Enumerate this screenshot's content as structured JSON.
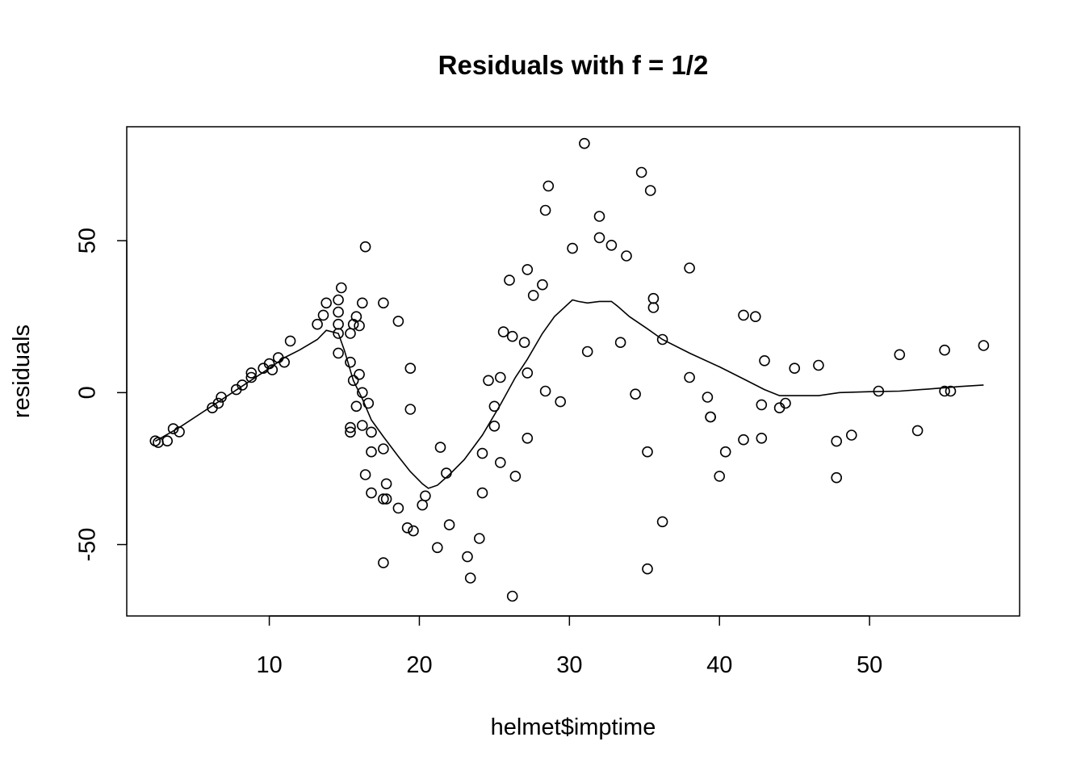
{
  "chart_data": {
    "type": "scatter",
    "title": "Residuals with f = 1/2",
    "xlabel": "helmet$imptime",
    "ylabel": "residuals",
    "xlim": [
      0.5,
      60
    ],
    "ylim": [
      -73.5,
      87.5
    ],
    "xticks": [
      10,
      20,
      30,
      40,
      50
    ],
    "yticks": [
      -50,
      0,
      50
    ],
    "grid": false,
    "legend": "none",
    "point_style": "open-circle",
    "colors": {
      "points": "#000000",
      "line": "#000000",
      "frame": "#000000",
      "background": "#ffffff"
    },
    "points": [
      [
        2.4,
        -15.9
      ],
      [
        2.6,
        -16.4
      ],
      [
        3.2,
        -15.9
      ],
      [
        3.6,
        -11.9
      ],
      [
        4.0,
        -12.9
      ],
      [
        6.2,
        -5.0
      ],
      [
        6.6,
        -3.5
      ],
      [
        6.8,
        -1.5
      ],
      [
        7.8,
        1.0
      ],
      [
        8.2,
        2.5
      ],
      [
        8.8,
        5.0
      ],
      [
        8.8,
        6.5
      ],
      [
        9.6,
        8.0
      ],
      [
        10.0,
        9.5
      ],
      [
        10.2,
        7.5
      ],
      [
        10.6,
        11.5
      ],
      [
        11.0,
        10.0
      ],
      [
        11.4,
        17.0
      ],
      [
        13.2,
        22.5
      ],
      [
        13.6,
        25.5
      ],
      [
        13.8,
        29.5
      ],
      [
        14.6,
        13.0
      ],
      [
        14.6,
        19.5
      ],
      [
        14.6,
        22.5
      ],
      [
        14.6,
        26.5
      ],
      [
        14.6,
        30.5
      ],
      [
        14.8,
        34.5
      ],
      [
        15.4,
        10.0
      ],
      [
        15.4,
        19.5
      ],
      [
        15.4,
        -11.5
      ],
      [
        15.4,
        -13.0
      ],
      [
        15.6,
        4.0
      ],
      [
        15.6,
        22.5
      ],
      [
        15.8,
        25.0
      ],
      [
        15.8,
        -4.5
      ],
      [
        16.0,
        22.0
      ],
      [
        16.0,
        6.0
      ],
      [
        16.2,
        0.0
      ],
      [
        16.2,
        -10.8
      ],
      [
        16.2,
        29.5
      ],
      [
        16.4,
        48.0
      ],
      [
        16.4,
        -27.0
      ],
      [
        16.6,
        -3.5
      ],
      [
        16.8,
        -13.0
      ],
      [
        16.8,
        -19.5
      ],
      [
        16.8,
        -33.0
      ],
      [
        17.6,
        29.5
      ],
      [
        17.6,
        -18.5
      ],
      [
        17.6,
        -35.0
      ],
      [
        17.6,
        -56.0
      ],
      [
        17.8,
        -30.0
      ],
      [
        17.8,
        -35.0
      ],
      [
        18.6,
        -38.0
      ],
      [
        18.6,
        23.5
      ],
      [
        19.2,
        -44.5
      ],
      [
        19.4,
        8.0
      ],
      [
        19.4,
        -5.5
      ],
      [
        19.6,
        -45.5
      ],
      [
        20.2,
        -37.0
      ],
      [
        20.4,
        -34.0
      ],
      [
        21.2,
        -51.0
      ],
      [
        21.4,
        -18.0
      ],
      [
        21.8,
        -26.5
      ],
      [
        22.0,
        -43.5
      ],
      [
        23.2,
        -54.0
      ],
      [
        23.4,
        -61.0
      ],
      [
        24.0,
        -48.0
      ],
      [
        24.2,
        -33.0
      ],
      [
        24.2,
        -20.0
      ],
      [
        24.6,
        4.0
      ],
      [
        25.0,
        -4.5
      ],
      [
        25.0,
        -11.0
      ],
      [
        25.4,
        5.0
      ],
      [
        25.4,
        -23.0
      ],
      [
        25.6,
        20.0
      ],
      [
        26.0,
        37.0
      ],
      [
        26.2,
        18.5
      ],
      [
        26.2,
        -67.0
      ],
      [
        26.4,
        -27.5
      ],
      [
        27.0,
        16.5
      ],
      [
        27.2,
        40.5
      ],
      [
        27.2,
        6.5
      ],
      [
        27.2,
        -15.0
      ],
      [
        27.6,
        32.0
      ],
      [
        28.2,
        35.5
      ],
      [
        28.4,
        60.0
      ],
      [
        28.4,
        0.5
      ],
      [
        28.6,
        68.0
      ],
      [
        29.4,
        -3.0
      ],
      [
        30.2,
        47.5
      ],
      [
        31.0,
        82.0
      ],
      [
        31.2,
        13.5
      ],
      [
        32.0,
        58.0
      ],
      [
        32.0,
        51.0
      ],
      [
        32.8,
        48.5
      ],
      [
        33.4,
        16.5
      ],
      [
        33.8,
        45.0
      ],
      [
        34.4,
        -0.5
      ],
      [
        34.8,
        72.5
      ],
      [
        35.2,
        -19.5
      ],
      [
        35.2,
        -58.0
      ],
      [
        35.4,
        66.5
      ],
      [
        35.6,
        31.0
      ],
      [
        35.6,
        28.0
      ],
      [
        36.2,
        17.5
      ],
      [
        36.2,
        -42.5
      ],
      [
        38.0,
        5.0
      ],
      [
        38.0,
        41.0
      ],
      [
        39.2,
        -1.5
      ],
      [
        39.4,
        -8.0
      ],
      [
        39.4,
        -8.0
      ],
      [
        40.0,
        -27.5
      ],
      [
        40.4,
        -19.5
      ],
      [
        41.6,
        -15.5
      ],
      [
        41.6,
        25.5
      ],
      [
        42.4,
        25.0
      ],
      [
        42.8,
        -4.0
      ],
      [
        42.8,
        -15.0
      ],
      [
        43.0,
        10.5
      ],
      [
        44.0,
        -5.0
      ],
      [
        44.4,
        -3.5
      ],
      [
        45.0,
        8.0
      ],
      [
        46.6,
        9.0
      ],
      [
        47.8,
        -16.0
      ],
      [
        47.8,
        -28.0
      ],
      [
        48.8,
        -14.0
      ],
      [
        50.6,
        0.5
      ],
      [
        52.0,
        12.5
      ],
      [
        53.2,
        -12.5
      ],
      [
        55.0,
        14.0
      ],
      [
        55.0,
        0.5
      ],
      [
        55.4,
        0.5
      ],
      [
        57.6,
        15.5
      ]
    ],
    "smooth_line": [
      [
        2.4,
        -16.0
      ],
      [
        4.0,
        -11.5
      ],
      [
        6.0,
        -5.0
      ],
      [
        8.0,
        1.5
      ],
      [
        10.0,
        8.0
      ],
      [
        11.0,
        11.5
      ],
      [
        12.0,
        14.0
      ],
      [
        13.2,
        17.5
      ],
      [
        13.8,
        20.5
      ],
      [
        14.6,
        19.5
      ],
      [
        15.0,
        14.0
      ],
      [
        15.6,
        4.0
      ],
      [
        16.2,
        -2.0
      ],
      [
        16.8,
        -9.0
      ],
      [
        17.6,
        -14.5
      ],
      [
        18.6,
        -21.0
      ],
      [
        19.4,
        -26.0
      ],
      [
        20.2,
        -30.0
      ],
      [
        20.6,
        -31.5
      ],
      [
        21.2,
        -30.5
      ],
      [
        22.0,
        -27.0
      ],
      [
        23.0,
        -22.0
      ],
      [
        24.2,
        -14.0
      ],
      [
        25.4,
        -4.0
      ],
      [
        26.4,
        5.0
      ],
      [
        27.2,
        11.0
      ],
      [
        28.2,
        19.5
      ],
      [
        29.0,
        25.0
      ],
      [
        30.2,
        30.5
      ],
      [
        30.6,
        30.0
      ],
      [
        31.2,
        29.5
      ],
      [
        32.0,
        30.0
      ],
      [
        32.8,
        30.0
      ],
      [
        33.2,
        28.5
      ],
      [
        34.0,
        25.0
      ],
      [
        35.2,
        21.0
      ],
      [
        36.2,
        17.5
      ],
      [
        38.0,
        13.0
      ],
      [
        40.0,
        8.5
      ],
      [
        41.6,
        4.5
      ],
      [
        43.0,
        1.0
      ],
      [
        44.0,
        -1.0
      ],
      [
        45.0,
        -1.0
      ],
      [
        46.6,
        -1.0
      ],
      [
        48.0,
        0.0
      ],
      [
        50.0,
        0.3
      ],
      [
        52.0,
        0.5
      ],
      [
        54.0,
        1.2
      ],
      [
        56.0,
        2.0
      ],
      [
        57.6,
        2.5
      ]
    ]
  }
}
